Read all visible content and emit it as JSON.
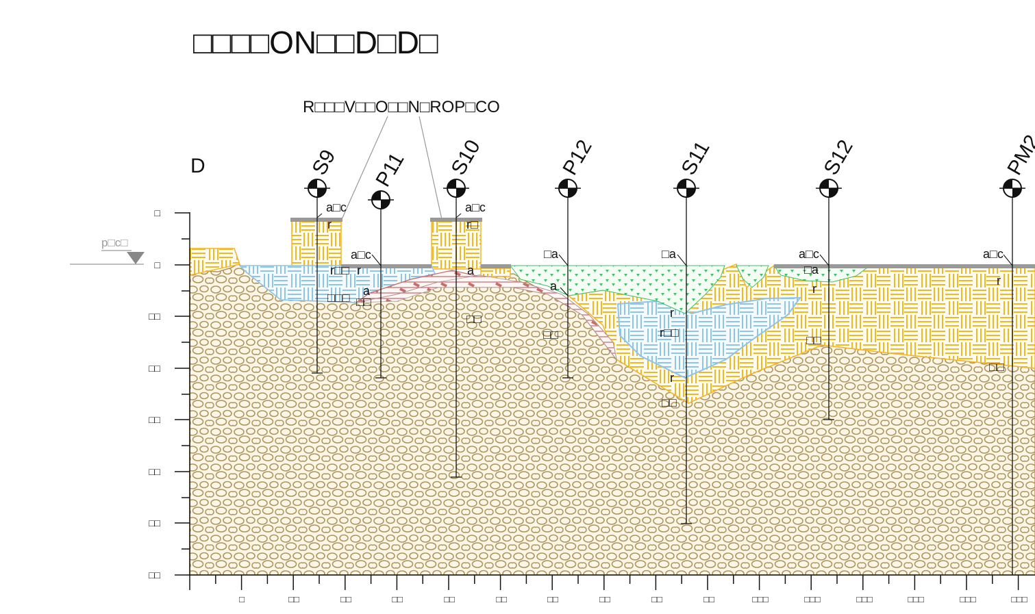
{
  "title": "□□□□ON□□D□D□",
  "section_label": "D",
  "callout": "R□□□V□□O□□N□ROP□CO",
  "water_label": "p□c□",
  "colors": {
    "gravel": "#b0965a",
    "gravel_bg": "#fbf6e7",
    "yellow": "#f7b520",
    "blue": "#8cc4ec",
    "red": "#c86b6b",
    "green": "#3cc36c",
    "ground_cap": "#999999"
  },
  "boreholes": [
    {
      "id": "S9",
      "kind": "S"
    },
    {
      "id": "P11",
      "kind": "P"
    },
    {
      "id": "S10",
      "kind": "S"
    },
    {
      "id": "P12",
      "kind": "P"
    },
    {
      "id": "S11",
      "kind": "S"
    },
    {
      "id": "S12",
      "kind": "S"
    },
    {
      "id": "PM2",
      "kind": "P"
    }
  ],
  "y_ticks": [
    "□",
    "□",
    "□□",
    "□□",
    "□□",
    "□□",
    "□□",
    "□□"
  ],
  "x_ticks": [
    "□",
    "□□",
    "□□",
    "□□",
    "□□",
    "□□",
    "□□",
    "□□",
    "□□",
    "□□",
    "□□□",
    "□□□",
    "□□□",
    "□□□",
    "□□□",
    "□□□"
  ],
  "layer_labels": [
    "a□c",
    "r",
    "r□□",
    "□□□",
    "a□c",
    "r",
    "a",
    "□□",
    "a□c",
    "r□",
    "a",
    "□□",
    "□a",
    "a",
    "□□",
    "□a",
    "r",
    "r□□",
    "r",
    "□□",
    "a□c",
    "□a",
    "r",
    "□□",
    "a□c",
    "r",
    "□□"
  ]
}
